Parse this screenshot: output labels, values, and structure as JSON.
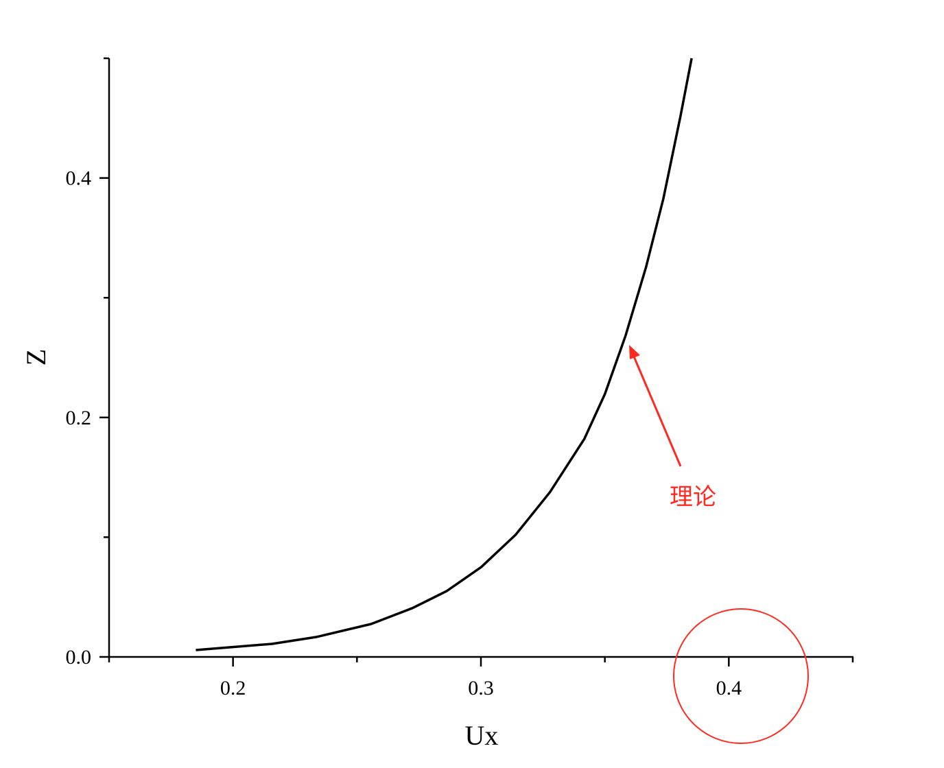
{
  "chart_data": {
    "type": "line",
    "x_label": "Ux",
    "y_label": "Z",
    "x": [
      0.185,
      0.2157,
      0.2335,
      0.2557,
      0.2723,
      0.2862,
      0.3001,
      0.314,
      0.3278,
      0.3417,
      0.35,
      0.3583,
      0.3666,
      0.3736,
      0.3805,
      0.385
    ],
    "values": [
      0.0057,
      0.0109,
      0.0166,
      0.0275,
      0.0407,
      0.055,
      0.075,
      0.102,
      0.1375,
      0.182,
      0.2195,
      0.268,
      0.3255,
      0.3828,
      0.4516,
      0.5
    ],
    "color": "#000000",
    "xlim": [
      0.15,
      0.45
    ],
    "ylim": [
      0,
      0.5
    ],
    "xticks": [
      0.2,
      0.3,
      0.4
    ],
    "yticks": [
      {
        "value": 0,
        "label": "0.0"
      },
      0.2,
      0.4
    ],
    "xminorticks": [
      0.15,
      0.25,
      0.35,
      0.45
    ],
    "yminorticks": [
      0.1,
      0.3,
      0.5
    ],
    "annotation": {
      "text": "理论",
      "color": "#ff2a1f"
    }
  }
}
